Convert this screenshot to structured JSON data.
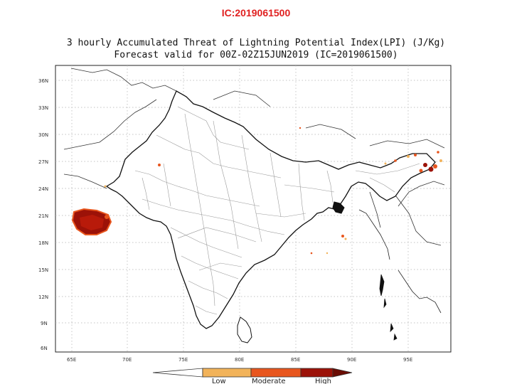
{
  "header": {
    "ic_label": "IC:2019061500",
    "title_line1": "3 hourly Accumulated Threat of Lightning Potential Index(LPI) (J/Kg)",
    "title_line2": "Forecast valid for 00Z-02Z15JUN2019 (IC=2019061500)"
  },
  "map": {
    "lat_labels": [
      "36N",
      "33N",
      "30N",
      "27N",
      "24N",
      "21N",
      "18N",
      "15N",
      "12N",
      "9N",
      "6N"
    ],
    "lon_labels": [
      "65E",
      "70E",
      "75E",
      "80E",
      "85E",
      "90E",
      "95E"
    ],
    "colors": {
      "land_outline": "#1a1a1a",
      "district_lines": "#9a9a9a",
      "grid": "#b0b0b0",
      "low": "#f2b35a",
      "moderate": "#e8561e",
      "high": "#9c1208"
    }
  },
  "legend": {
    "low": "Low",
    "moderate": "Moderate",
    "high": "High"
  }
}
